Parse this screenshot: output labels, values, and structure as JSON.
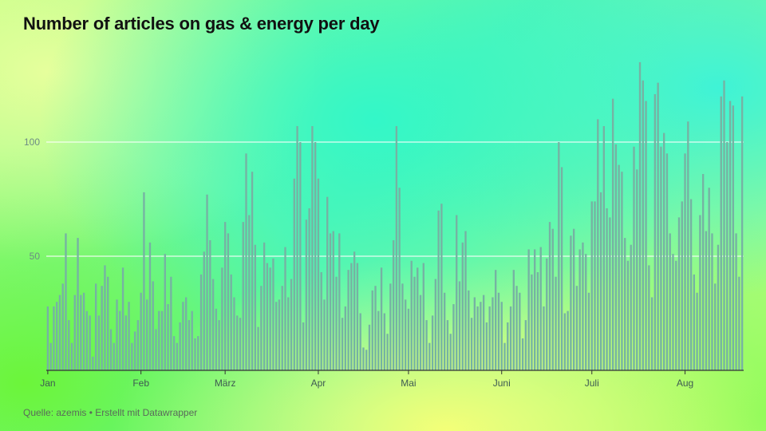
{
  "title": "Number of articles on gas & energy per day",
  "source": "Quelle: azemis • Erstellt mit Datawrapper",
  "colors": {
    "bar": "#76b2a3",
    "grid": "#ffffff",
    "axis": "#333333"
  },
  "chart_data": {
    "type": "bar",
    "title": "Number of articles on gas & energy per day",
    "xlabel": "",
    "ylabel": "",
    "ylim": [
      0,
      150
    ],
    "yticks": [
      50,
      100
    ],
    "grid": true,
    "x_start": "2022-01-01",
    "month_ticks": [
      {
        "label": "Jan",
        "day": 1
      },
      {
        "label": "Feb",
        "day": 32
      },
      {
        "label": "März",
        "day": 60
      },
      {
        "label": "Apr",
        "day": 91
      },
      {
        "label": "Mai",
        "day": 121
      },
      {
        "label": "Juni",
        "day": 152
      },
      {
        "label": "Juli",
        "day": 182
      },
      {
        "label": "Aug",
        "day": 213
      }
    ],
    "values": [
      28,
      12,
      28,
      30,
      33,
      38,
      60,
      22,
      12,
      33,
      58,
      33,
      34,
      26,
      24,
      6,
      38,
      24,
      37,
      46,
      41,
      18,
      12,
      31,
      26,
      45,
      24,
      30,
      12,
      17,
      22,
      34,
      78,
      31,
      56,
      39,
      18,
      26,
      26,
      51,
      29,
      41,
      15,
      12,
      21,
      30,
      32,
      22,
      26,
      14,
      15,
      42,
      52,
      77,
      57,
      40,
      27,
      22,
      45,
      65,
      60,
      42,
      32,
      24,
      23,
      65,
      95,
      68,
      87,
      55,
      19,
      37,
      56,
      47,
      45,
      49,
      30,
      31,
      37,
      54,
      32,
      40,
      84,
      107,
      100,
      21,
      66,
      71,
      107,
      100,
      84,
      43,
      31,
      76,
      60,
      61,
      41,
      60,
      23,
      28,
      44,
      47,
      52,
      47,
      25,
      10,
      9,
      20,
      35,
      37,
      26,
      45,
      25,
      16,
      38,
      57,
      107,
      80,
      38,
      31,
      27,
      48,
      41,
      45,
      33,
      47,
      22,
      12,
      24,
      40,
      70,
      73,
      34,
      22,
      16,
      29,
      68,
      39,
      56,
      61,
      35,
      23,
      32,
      28,
      30,
      33,
      21,
      28,
      32,
      44,
      34,
      30,
      12,
      21,
      28,
      44,
      37,
      34,
      14,
      22,
      53,
      42,
      53,
      43,
      54,
      28,
      49,
      65,
      62,
      41,
      100,
      89,
      25,
      26,
      59,
      62,
      37,
      53,
      56,
      51,
      34,
      74,
      74,
      110,
      78,
      107,
      71,
      67,
      119,
      99,
      90,
      87,
      58,
      48,
      55,
      98,
      88,
      135,
      127,
      118,
      46,
      32,
      121,
      126,
      98,
      104,
      95,
      60,
      51,
      48,
      67,
      74,
      95,
      109,
      75,
      42,
      34,
      68,
      86,
      61,
      80,
      60,
      38,
      55,
      120,
      127,
      100,
      118,
      116,
      60,
      41,
      120
    ]
  }
}
